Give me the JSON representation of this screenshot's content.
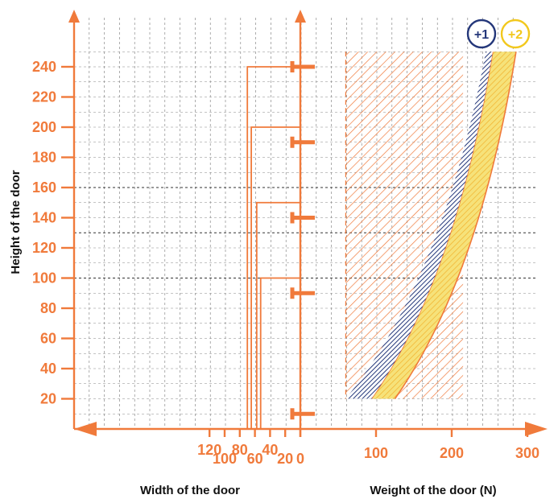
{
  "chart_data": {
    "type": "area",
    "left_panel": {
      "xlabel": "Width of the door",
      "x_ticks": [
        120,
        100,
        80,
        60,
        40,
        20,
        0
      ],
      "xlim": [
        140,
        0
      ],
      "outline_openings": [
        {
          "height": 240,
          "width": 70
        },
        {
          "height": 200,
          "width": 68
        },
        {
          "height": 150,
          "width": 64
        },
        {
          "height": 100,
          "width": 62
        }
      ],
      "hinge_heights": [
        240,
        190,
        140,
        90,
        10
      ]
    },
    "right_panel": {
      "xlabel": "Weight of the door (N)",
      "x_ticks": [
        100,
        200,
        300
      ],
      "xlim": [
        0,
        300
      ],
      "reference_zone": {
        "x_range": [
          60,
          215
        ],
        "y_range": [
          20,
          250
        ]
      },
      "bands": [
        {
          "label": "+1",
          "color": "#24377a",
          "left_edge": [
            [
              60,
              20
            ],
            [
              245,
              250
            ]
          ],
          "right_edge": [
            [
              95,
              20
            ],
            [
              255,
              250
            ]
          ]
        },
        {
          "label": "+2",
          "color": "#f2c81d",
          "left_edge": [
            [
              95,
              20
            ],
            [
              255,
              250
            ]
          ],
          "right_edge": [
            [
              125,
              20
            ],
            [
              285,
              250
            ]
          ]
        }
      ]
    },
    "ylabel": "Height of the door",
    "y_ticks": [
      20,
      40,
      60,
      80,
      100,
      120,
      140,
      160,
      180,
      200,
      220,
      240
    ],
    "ylim": [
      0,
      260
    ],
    "grid": true
  },
  "colors": {
    "accent": "#f07a3b",
    "band_plus1": "#24377a",
    "band_plus2": "#f2c81d",
    "axis_title": "#111111"
  }
}
